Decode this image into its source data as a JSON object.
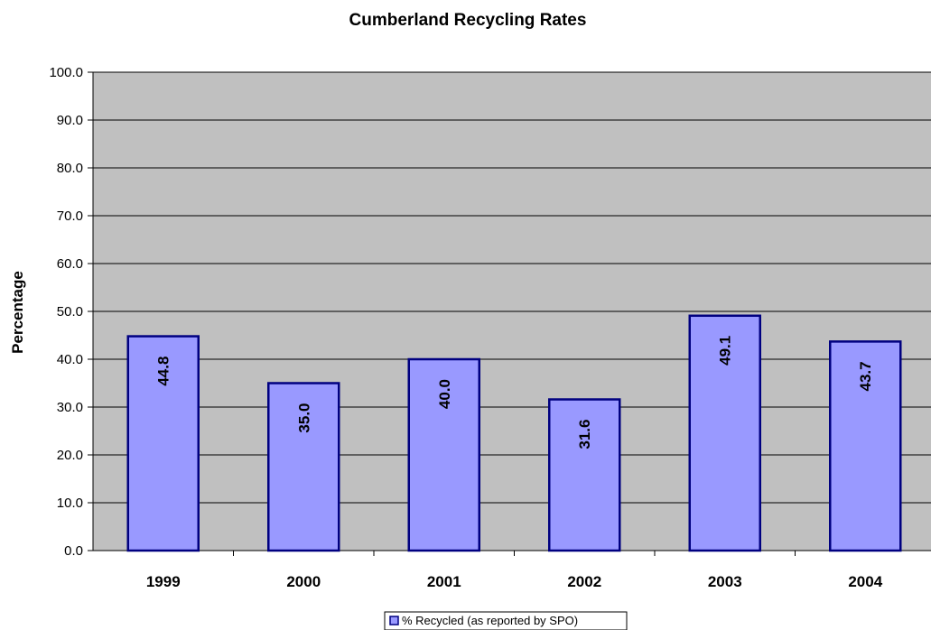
{
  "chart_data": {
    "type": "bar",
    "title": "Cumberland Recycling Rates",
    "xlabel": "",
    "ylabel": "Percentage",
    "categories": [
      "1999",
      "2000",
      "2001",
      "2002",
      "2003",
      "2004"
    ],
    "series": [
      {
        "name": "% Recycled (as reported by SPO)",
        "values": [
          44.8,
          35.0,
          40.0,
          31.6,
          49.1,
          43.7
        ],
        "color": "#9999FF",
        "edge_color": "#000080"
      }
    ],
    "data_labels": [
      "44.8",
      "35.0",
      "40.0",
      "31.6",
      "49.1",
      "43.7"
    ],
    "ylim": [
      0,
      100
    ],
    "yticks": [
      "0.0",
      "10.0",
      "20.0",
      "30.0",
      "40.0",
      "50.0",
      "60.0",
      "70.0",
      "80.0",
      "90.0",
      "100.0"
    ],
    "grid": true,
    "plot_background": "#C0C0C0",
    "legend_position": "bottom"
  }
}
